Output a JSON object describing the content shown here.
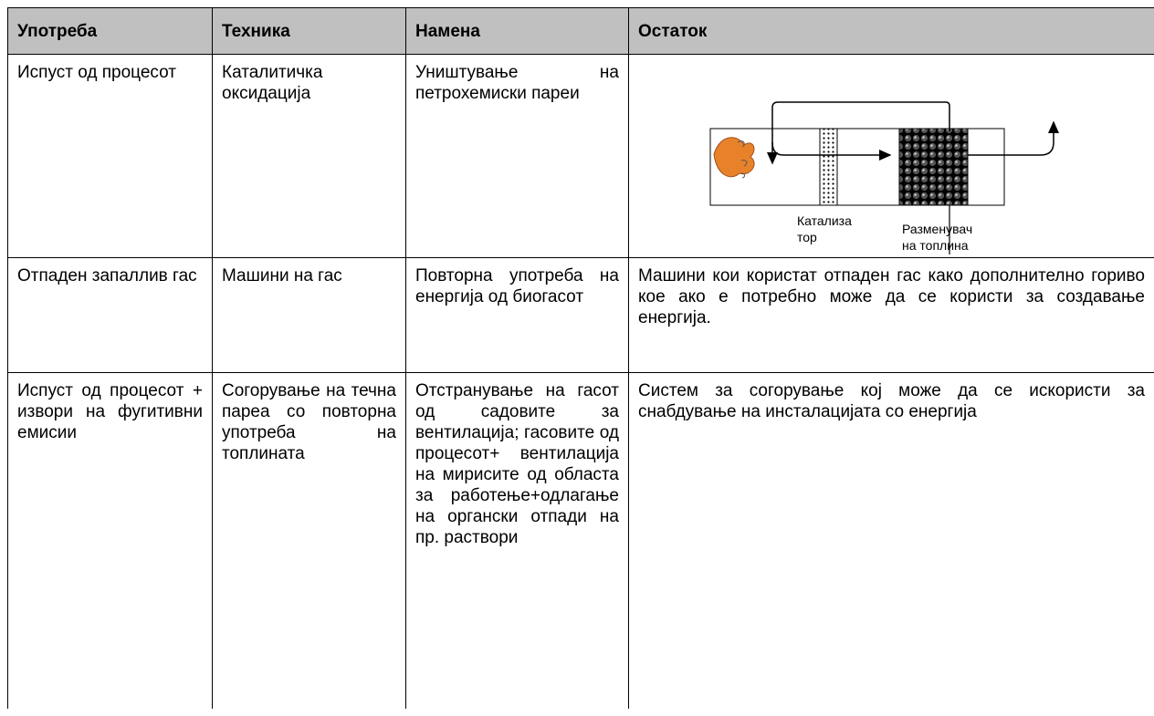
{
  "table": {
    "header": [
      "Употреба",
      "Техника",
      "Намена",
      "Остаток"
    ],
    "rows": [
      {
        "use": "Испуст од процесот",
        "technique": "Каталитичка оксидација",
        "purpose": "Уништување на петрохемиски пареи"
      },
      {
        "use": "Отпаден запаллив гас",
        "technique": "Машини на гас",
        "purpose": "Повторна употреба на енергија од биогасот",
        "remainder": "Машини кои користат отпаден гас како дополнително гориво кое ако е потребно може да се користи за создавање енергија."
      },
      {
        "use": "Испуст од процесот + извори на фугитивни емисии",
        "technique": "Согорување на течна пареа со повторна употреба на топлината",
        "purpose": "Отстранување на гасот од садовите за вентилација; гасовите од процесот+ вентилација на мирисите од областа за работење+одлагање на органски отпади на пр. раствори",
        "remainder": "Систем за согорување кој може да се искористи за снабдување на инсталацијата со енергија"
      }
    ]
  },
  "diagram": {
    "catalyst_label": [
      "Катализа",
      "тор"
    ],
    "exchanger_label": [
      "Разменувач",
      "на топлина"
    ]
  }
}
